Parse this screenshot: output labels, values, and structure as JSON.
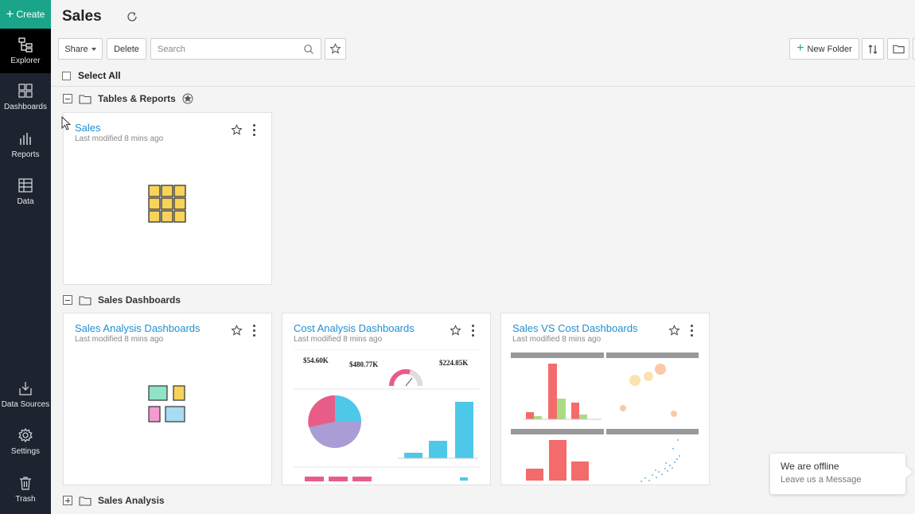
{
  "sidebar": {
    "create_label": "Create",
    "items": [
      {
        "label": "Explorer",
        "icon": "explorer-icon"
      },
      {
        "label": "Dashboards",
        "icon": "dashboards-icon"
      },
      {
        "label": "Reports",
        "icon": "reports-icon"
      },
      {
        "label": "Data",
        "icon": "data-table-icon"
      },
      {
        "label": "Data Sources",
        "icon": "data-sources-icon"
      },
      {
        "label": "Settings",
        "icon": "gear-icon"
      },
      {
        "label": "Trash",
        "icon": "trash-icon"
      }
    ]
  },
  "header": {
    "title": "Sales"
  },
  "toolbar": {
    "share_label": "Share",
    "delete_label": "Delete",
    "search_placeholder": "Search",
    "new_folder_label": "New Folder"
  },
  "select_all_label": "Select All",
  "groups": [
    {
      "name": "Tables & Reports",
      "expanded": true
    },
    {
      "name": "Sales Dashboards",
      "expanded": true
    },
    {
      "name": "Sales Analysis",
      "expanded": false
    }
  ],
  "cards": [
    {
      "title": "Sales",
      "subtitle": "Last modified 8 mins ago"
    },
    {
      "title": "Sales Analysis Dashboards",
      "subtitle": "Last modified 8 mins ago"
    },
    {
      "title": "Cost Analysis Dashboards",
      "subtitle": "Last modified 8 mins ago"
    },
    {
      "title": "Sales VS Cost Dashboards",
      "subtitle": "Last modified 8 mins ago"
    }
  ],
  "preview_cost": {
    "kpi1": "$54.60K",
    "kpi2": "$480.77K",
    "kpi3": "$224.85K"
  },
  "chat": {
    "title": "We are offline",
    "subtitle": "Leave us a Message"
  },
  "colors": {
    "sidebar_bg": "#1d2430",
    "create_green": "#1aa58a",
    "link_blue": "#1f8fd1"
  }
}
